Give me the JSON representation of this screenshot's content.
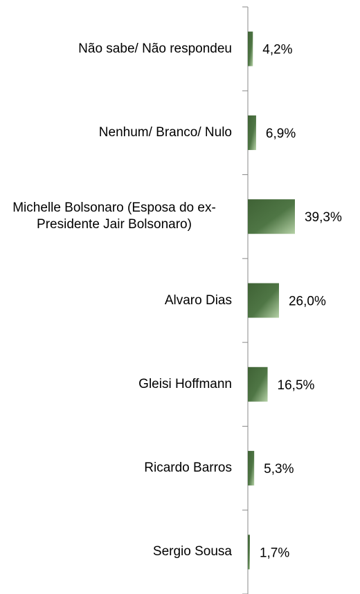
{
  "chart_data": {
    "type": "barh",
    "categories": [
      "Não sabe/ Não respondeu",
      "Nenhum/ Branco/ Nulo",
      "Michelle Bolsonaro (Esposa do ex-Presidente Jair Bolsonaro)",
      "Alvaro Dias",
      "Gleisi Hoffmann",
      "Ricardo Barros",
      "Sergio Sousa"
    ],
    "values": [
      4.2,
      6.9,
      39.3,
      26.0,
      16.5,
      5.3,
      1.7
    ],
    "value_labels": [
      "4,2%",
      "6,9%",
      "39,3%",
      "26,0%",
      "16,5%",
      "5,3%",
      "1,7%"
    ],
    "color": "#4e7443",
    "xlim": [
      0,
      100
    ]
  }
}
